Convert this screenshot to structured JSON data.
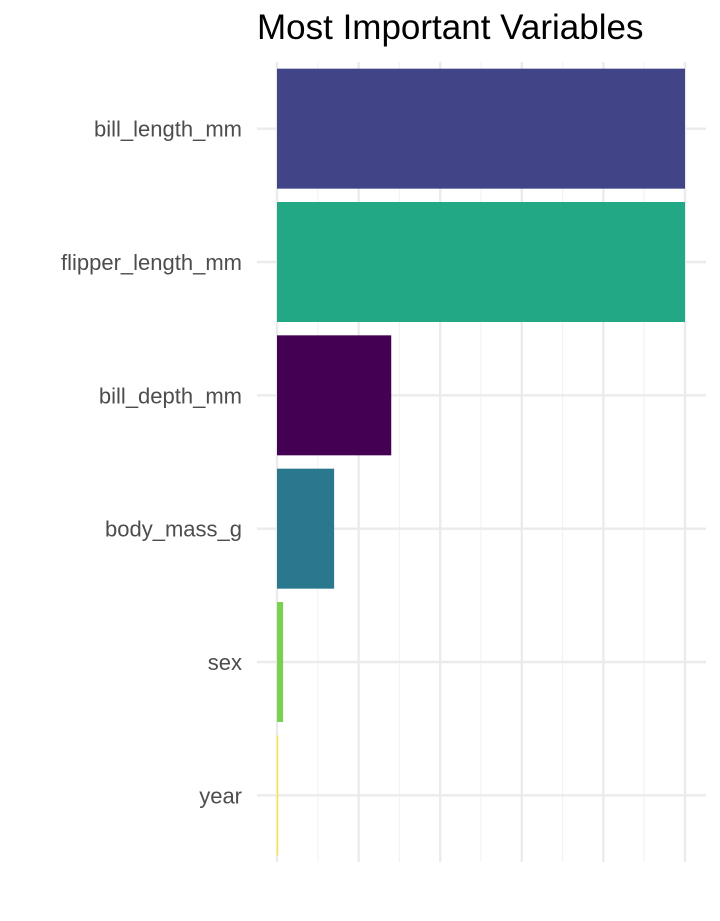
{
  "chart_data": {
    "type": "bar",
    "orientation": "horizontal",
    "title": "Most Important Variables",
    "xlabel": "",
    "ylabel": "",
    "categories": [
      "bill_length_mm",
      "flipper_length_mm",
      "bill_depth_mm",
      "body_mass_g",
      "sex",
      "year"
    ],
    "values": [
      100,
      100,
      28,
      14,
      1.5,
      0.3
    ],
    "colors": [
      "#414487",
      "#22A884",
      "#440154",
      "#2A788E",
      "#7AD151",
      "#FDE725"
    ],
    "xlim": [
      0,
      105
    ],
    "grid": true,
    "x_tick_labels_shown": false,
    "legend": "none"
  }
}
